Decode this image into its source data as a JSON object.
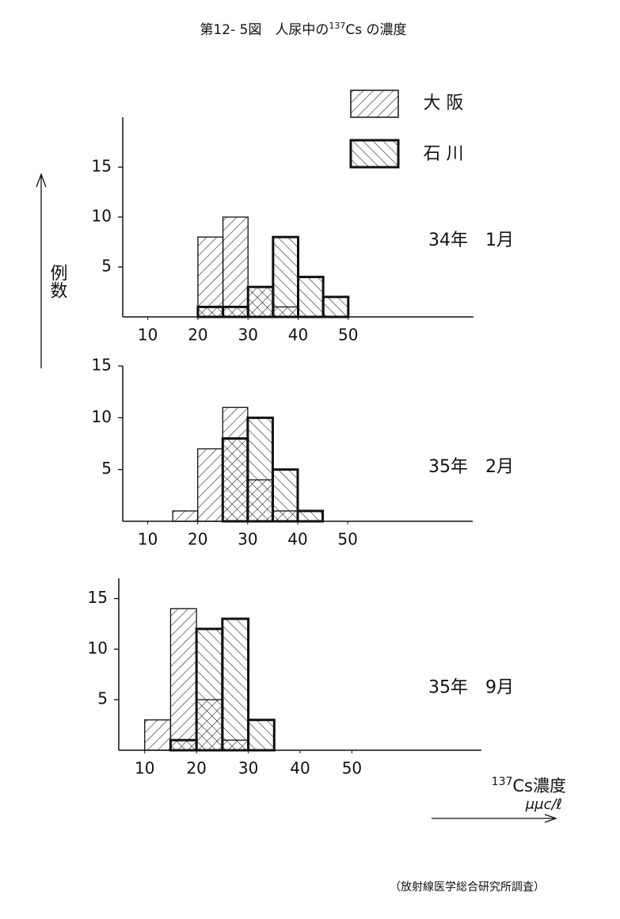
{
  "title": "第12- 5図　人尿中の",
  "title_isotope": "137",
  "title_rest": "Cs の濃度",
  "y_label": "例数",
  "x_label_isotope": "137",
  "x_label": "Cs濃度",
  "x_unit": "μμc/ℓ",
  "source": "（放射線医学総合研究所調査）",
  "legend": [
    {
      "name": "大 阪",
      "pattern": "forward"
    },
    {
      "name": "石 川",
      "pattern": "backward"
    }
  ],
  "chart_data": [
    {
      "type": "histogram",
      "label": "34年　1月",
      "bins": [
        20,
        25,
        30,
        35,
        40,
        45,
        50
      ],
      "series": [
        {
          "pattern": "forward",
          "values": [
            8,
            10,
            3,
            1,
            0,
            0
          ]
        },
        {
          "pattern": "backward",
          "values": [
            1,
            1,
            3,
            8,
            4,
            2
          ]
        }
      ],
      "xlim": [
        5,
        75
      ],
      "ylim": [
        0,
        20
      ],
      "xticks": [
        10,
        20,
        30,
        40,
        50
      ],
      "yticks": [
        5,
        10,
        15
      ]
    },
    {
      "type": "histogram",
      "label": "35年　2月",
      "bins": [
        15,
        20,
        25,
        30,
        35,
        40,
        45
      ],
      "series": [
        {
          "pattern": "forward",
          "values": [
            1,
            7,
            11,
            4,
            1,
            0
          ]
        },
        {
          "pattern": "backward",
          "values": [
            0,
            0,
            8,
            10,
            5,
            1
          ]
        }
      ],
      "xlim": [
        5,
        75
      ],
      "ylim": [
        0,
        15
      ],
      "xticks": [
        10,
        20,
        30,
        40,
        50
      ],
      "yticks": [
        5,
        10,
        15
      ]
    },
    {
      "type": "histogram",
      "label": "35年　9月",
      "bins": [
        10,
        15,
        20,
        25,
        30,
        35
      ],
      "series": [
        {
          "pattern": "forward",
          "values": [
            3,
            14,
            5,
            1,
            0
          ]
        },
        {
          "pattern": "backward",
          "values": [
            0,
            1,
            12,
            13,
            3
          ]
        }
      ],
      "xlim": [
        5,
        75
      ],
      "ylim": [
        0,
        17
      ],
      "xticks": [
        10,
        20,
        30,
        40,
        50
      ],
      "yticks": [
        5,
        10,
        15
      ]
    }
  ]
}
